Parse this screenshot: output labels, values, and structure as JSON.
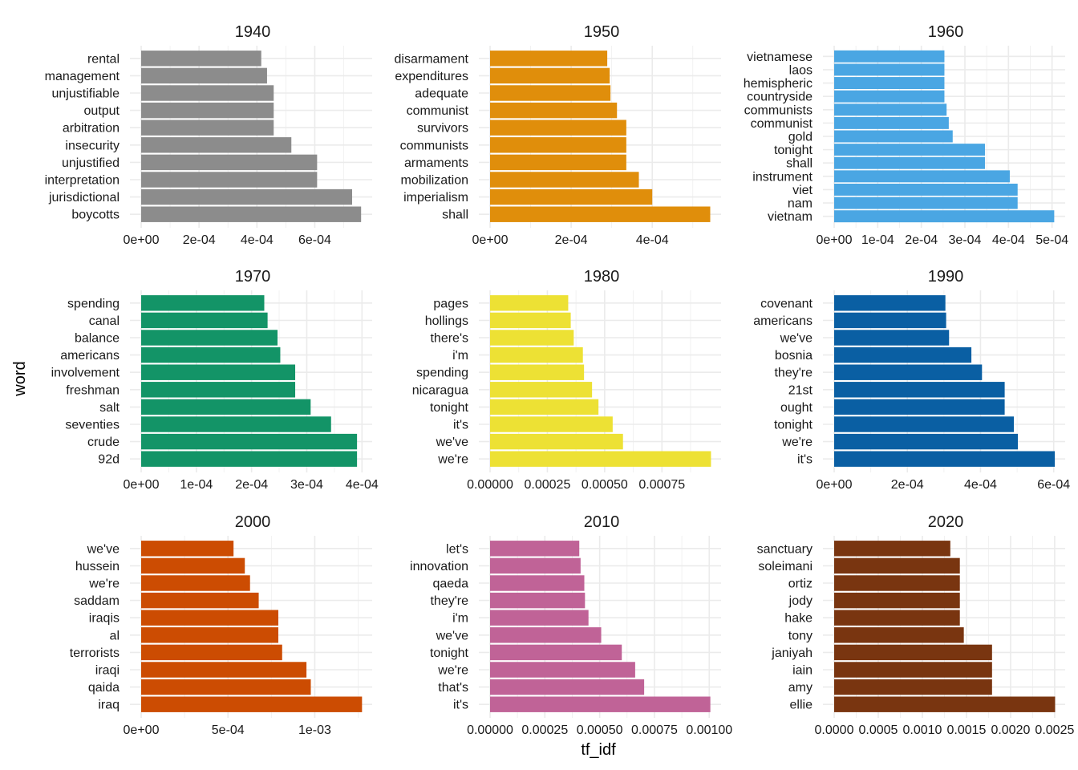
{
  "chart_data": {
    "type": "bar",
    "orientation": "horizontal",
    "layout": "facet-grid-3x3",
    "xlabel": "tf_idf",
    "ylabel": "word",
    "grid": true,
    "legend": "none",
    "panels": [
      {
        "title": "1940",
        "color": "#8c8c8c",
        "categories": [
          "rental",
          "management",
          "unjustifiable",
          "output",
          "arbitration",
          "insecurity",
          "unjustified",
          "interpretation",
          "jurisdictional",
          "boycotts"
        ],
        "values": [
          0.000415,
          0.000435,
          0.000458,
          0.000458,
          0.000458,
          0.000519,
          0.000608,
          0.000608,
          0.000729,
          0.00076
        ],
        "xlim": [
          0,
          0.000765
        ],
        "xticks": [
          0,
          0.0002,
          0.0004,
          0.0006
        ],
        "xtick_labels": [
          "0e+00",
          "2e-04",
          "4e-04",
          "6e-04"
        ]
      },
      {
        "title": "1950",
        "color": "#e08e0b",
        "categories": [
          "disarmament",
          "expenditures",
          "adequate",
          "communist",
          "survivors",
          "communists",
          "armaments",
          "mobilization",
          "imperialism",
          "shall"
        ],
        "values": [
          0.000289,
          0.000295,
          0.000297,
          0.000313,
          0.000336,
          0.000336,
          0.000336,
          0.000367,
          0.0004,
          0.000543
        ],
        "xlim": [
          0,
          0.000546
        ],
        "xticks": [
          0,
          0.0002,
          0.0004
        ],
        "xtick_labels": [
          "0e+00",
          "2e-04",
          "4e-04"
        ]
      },
      {
        "title": "1960",
        "color": "#4aa6e3",
        "categories": [
          "vietnamese",
          "laos",
          "hemispheric",
          "countryside",
          "communists",
          "communist",
          "gold",
          "tonight",
          "shall",
          "instrument",
          "viet",
          "nam",
          "vietnam"
        ],
        "values": [
          0.000253,
          0.000253,
          0.000253,
          0.000253,
          0.000258,
          0.000263,
          0.000272,
          0.000346,
          0.000346,
          0.000403,
          0.000421,
          0.000421,
          0.000505
        ],
        "xlim": [
          0,
          0.000508
        ],
        "xticks": [
          0,
          0.0001,
          0.0002,
          0.0003,
          0.0004,
          0.0005
        ],
        "xtick_labels": [
          "0e+00",
          "1e-04",
          "2e-04",
          "3e-04",
          "4e-04",
          "5e-04"
        ]
      },
      {
        "title": "1970",
        "color": "#139467",
        "categories": [
          "spending",
          "canal",
          "balance",
          "americans",
          "involvement",
          "freshman",
          "salt",
          "seventies",
          "crude",
          "92d"
        ],
        "values": [
          0.000223,
          0.000229,
          0.000247,
          0.000252,
          0.000279,
          0.000279,
          0.000307,
          0.000344,
          0.000391,
          0.000391
        ],
        "xlim": [
          0,
          0.000401
        ],
        "xticks": [
          0,
          0.0001,
          0.0002,
          0.0003,
          0.0004
        ],
        "xtick_labels": [
          "0e+00",
          "1e-04",
          "2e-04",
          "3e-04",
          "4e-04"
        ]
      },
      {
        "title": "1980",
        "color": "#ede134",
        "categories": [
          "pages",
          "hollings",
          "there's",
          "i'm",
          "spending",
          "nicaragua",
          "tonight",
          "it's",
          "we've",
          "we're"
        ],
        "values": [
          0.000341,
          0.000352,
          0.000365,
          0.000405,
          0.00041,
          0.000445,
          0.000473,
          0.000535,
          0.00058,
          0.000964
        ],
        "xlim": [
          0,
          0.000966
        ],
        "xticks": [
          0,
          0.00025,
          0.0005,
          0.00075
        ],
        "xtick_labels": [
          "0.00000",
          "0.00025",
          "0.00050",
          "0.00075"
        ]
      },
      {
        "title": "1990",
        "color": "#0a5fa3",
        "categories": [
          "covenant",
          "americans",
          "we've",
          "bosnia",
          "they're",
          "21st",
          "ought",
          "tonight",
          "we're",
          "it's"
        ],
        "values": [
          0.000304,
          0.000306,
          0.000314,
          0.000375,
          0.000404,
          0.000466,
          0.000466,
          0.000491,
          0.000502,
          0.000603
        ],
        "xlim": [
          0,
          0.000605
        ],
        "xticks": [
          0,
          0.0002,
          0.0004,
          0.0006
        ],
        "xtick_labels": [
          "0e+00",
          "2e-04",
          "4e-04",
          "6e-04"
        ]
      },
      {
        "title": "2000",
        "color": "#cc4c02",
        "categories": [
          "we've",
          "hussein",
          "we're",
          "saddam",
          "iraqis",
          "al",
          "terrorists",
          "iraqi",
          "qaida",
          "iraq"
        ],
        "values": [
          0.000532,
          0.000597,
          0.000627,
          0.000677,
          0.00079,
          0.00079,
          0.000812,
          0.000952,
          0.000977,
          0.001272
        ],
        "xlim": [
          0,
          0.001275
        ],
        "xticks": [
          0,
          0.0005,
          0.001
        ],
        "xtick_labels": [
          "0e+00",
          "5e-04",
          "1e-03"
        ]
      },
      {
        "title": "2010",
        "color": "#c06397",
        "categories": [
          "let's",
          "innovation",
          "qaeda",
          "they're",
          "i'm",
          "we've",
          "tonight",
          "we're",
          "that's",
          "it's"
        ],
        "values": [
          0.000407,
          0.000413,
          0.00043,
          0.000433,
          0.000449,
          0.000507,
          0.000601,
          0.000662,
          0.000703,
          0.001005
        ],
        "xlim": [
          0,
          0.00101
        ],
        "xticks": [
          0,
          0.00025,
          0.0005,
          0.00075,
          0.001
        ],
        "xtick_labels": [
          "0.00000",
          "0.00025",
          "0.00050",
          "0.00075",
          "0.00100"
        ]
      },
      {
        "title": "2020",
        "color": "#793510",
        "categories": [
          "sanctuary",
          "soleimani",
          "ortiz",
          "jody",
          "hake",
          "tony",
          "janiyah",
          "iain",
          "amy",
          "ellie"
        ],
        "values": [
          0.001317,
          0.001425,
          0.001425,
          0.001425,
          0.001425,
          0.00147,
          0.00179,
          0.00179,
          0.00179,
          0.002505
        ],
        "xlim": [
          0,
          0.00251
        ],
        "xticks": [
          0,
          0.0005,
          0.001,
          0.0015,
          0.002,
          0.0025
        ],
        "xtick_labels": [
          "0.0000",
          "0.0005",
          "0.0010",
          "0.0015",
          "0.0020",
          "0.0025"
        ]
      }
    ]
  }
}
